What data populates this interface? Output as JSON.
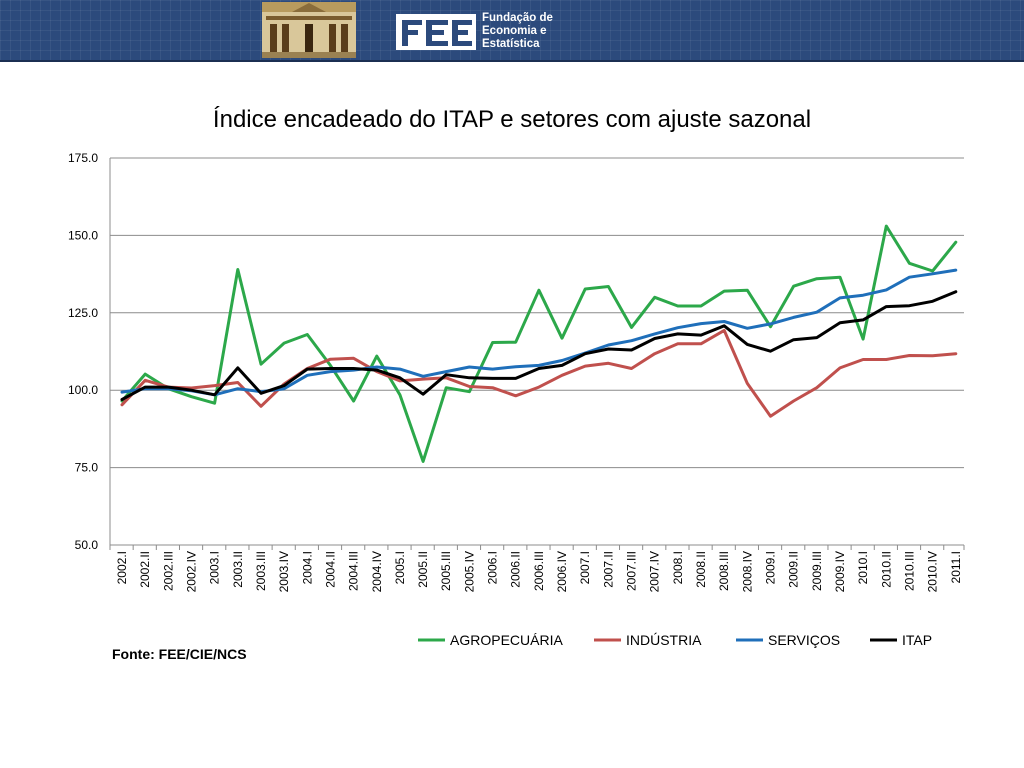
{
  "header": {
    "logo_lines": [
      "Fundação de",
      "Economia e",
      "Estatística"
    ]
  },
  "source": "Fonte: FEE/CIE/NCS",
  "chart_data": {
    "type": "line",
    "title": "Índice encadeado do ITAP e setores com ajuste sazonal",
    "xlabel": "",
    "ylabel": "",
    "ylim": [
      50,
      175
    ],
    "yticks": [
      "50.0",
      "75.0",
      "100.0",
      "125.0",
      "150.0",
      "175.0"
    ],
    "grid": true,
    "legend_position": "bottom",
    "categories": [
      "2002.I",
      "2002.II",
      "2002.III",
      "2002.IV",
      "2003.I",
      "2003.II",
      "2003.III",
      "2003.IV",
      "2004.I",
      "2004.II",
      "2004.III",
      "2004.IV",
      "2005.I",
      "2005.II",
      "2005.III",
      "2005.IV",
      "2006.I",
      "2006.II",
      "2006.III",
      "2006.IV",
      "2007.I",
      "2007.II",
      "2007.III",
      "2007.IV",
      "2008.I",
      "2008.II",
      "2008.III",
      "2008.IV",
      "2009.I",
      "2009.II",
      "2009.III",
      "2009.IV",
      "2010.I",
      "2010.II",
      "2010.III",
      "2010.IV",
      "2011.I"
    ],
    "series": [
      {
        "name": "AGROPECUÁRIA",
        "color": "#2ca84a",
        "values": [
          96.5,
          105.2,
          100.5,
          97.9,
          95.8,
          139.0,
          108.4,
          115.2,
          118.0,
          108.0,
          96.5,
          111.0,
          98.5,
          77.0,
          100.8,
          99.5,
          115.4,
          115.5,
          132.3,
          116.8,
          132.7,
          133.5,
          120.3,
          130.0,
          127.2,
          127.2,
          132.0,
          132.3,
          120.5,
          133.6,
          136.0,
          136.5,
          116.5,
          153.0,
          141.0,
          138.5,
          147.8
        ]
      },
      {
        "name": "INDÚSTRIA",
        "color": "#c0504d",
        "values": [
          95.3,
          103.2,
          101.0,
          100.7,
          101.5,
          102.5,
          94.8,
          102.0,
          107.0,
          110.0,
          110.3,
          106.0,
          103.0,
          103.6,
          104.0,
          101.2,
          100.8,
          98.2,
          101.0,
          104.8,
          107.8,
          108.7,
          107.0,
          111.8,
          115.0,
          115.0,
          119.3,
          102.2,
          91.6,
          96.5,
          100.8,
          107.2,
          109.9,
          109.9,
          111.2,
          111.1,
          111.8
        ]
      },
      {
        "name": "SERVIÇOS",
        "color": "#1f6fba",
        "values": [
          99.4,
          100.5,
          100.5,
          99.8,
          98.5,
          100.5,
          99.5,
          100.5,
          104.8,
          106.0,
          106.5,
          107.5,
          106.8,
          104.5,
          106.0,
          107.5,
          106.8,
          107.6,
          108.0,
          109.6,
          112.0,
          114.6,
          116.0,
          118.2,
          120.2,
          121.5,
          122.2,
          120.0,
          121.4,
          123.5,
          125.2,
          129.8,
          130.7,
          132.4,
          136.5,
          137.6,
          138.8
        ]
      },
      {
        "name": "ITAP",
        "color": "#000000",
        "values": [
          97.0,
          101.0,
          101.0,
          100.0,
          98.5,
          107.2,
          99.0,
          101.5,
          106.8,
          107.0,
          107.0,
          106.5,
          104.0,
          98.7,
          105.0,
          104.0,
          103.8,
          103.8,
          107.0,
          108.0,
          111.8,
          113.3,
          113.0,
          116.7,
          118.2,
          117.8,
          120.8,
          114.8,
          112.6,
          116.3,
          117.0,
          121.8,
          122.7,
          127.0,
          127.3,
          128.7,
          131.8
        ]
      }
    ]
  }
}
